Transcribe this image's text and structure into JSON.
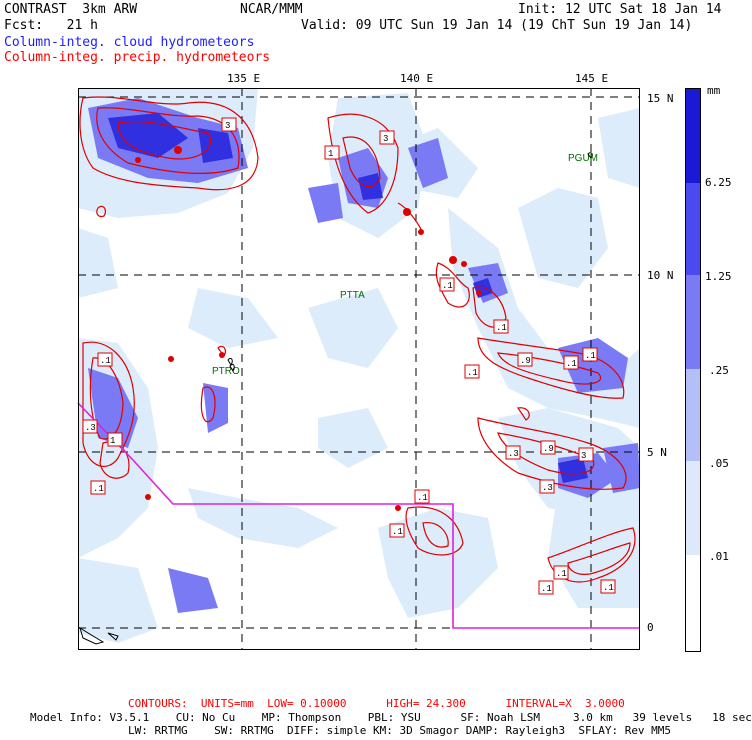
{
  "header": {
    "model": "CONTRAST  3km ARW",
    "center": "NCAR/MMM",
    "init": "Init: 12 UTC Sat 18 Jan 14",
    "fcst": "Fcst:   21 h",
    "valid": "Valid: 09 UTC Sun 19 Jan 14 (19 ChT Sun 19 Jan 14)",
    "legend_cloud": "Column-integ. cloud hydrometeors",
    "legend_precip": "Column-integ. precip. hydrometeors"
  },
  "map": {
    "lon_labels": [
      "135 E",
      "140 E",
      "145 E"
    ],
    "lat_labels": [
      "15 N",
      "10 N",
      "5 N",
      "0"
    ],
    "stations": [
      "PGUM",
      "PTTA",
      "PTRO"
    ],
    "contour_labels": [
      "3",
      "1",
      ".1",
      ".3",
      ".9"
    ]
  },
  "colorbar": {
    "unit": "mm",
    "ticks": [
      "6.25",
      "1.25",
      ".25",
      ".05",
      ".01"
    ],
    "colors": [
      "#1a1ad6",
      "#4a4af0",
      "#7a7af5",
      "#b4bff8",
      "#dde8fb",
      "#e8f8fc",
      "#ffffff"
    ]
  },
  "footer": {
    "contours": "CONTOURS:  UNITS=mm  LOW= 0.10000      HIGH= 24.300      INTERVAL=X  3.0000",
    "line1": "Model Info: V3.5.1    CU: No Cu    MP: Thompson    PBL: YSU      SF: Noah LSM     3.0 km   39 levels   18 sec",
    "line2": "LW: RRTMG    SW: RRTMG  DIFF: simple KM: 3D Smagor DAMP: Rayleigh3  SFLAY: Rev MM5"
  },
  "colors": {
    "cloud": "#6a6af0",
    "cloud_light": "#dcecfb",
    "precip": "#e00000",
    "track": "#e020e0",
    "station": "#007000"
  }
}
